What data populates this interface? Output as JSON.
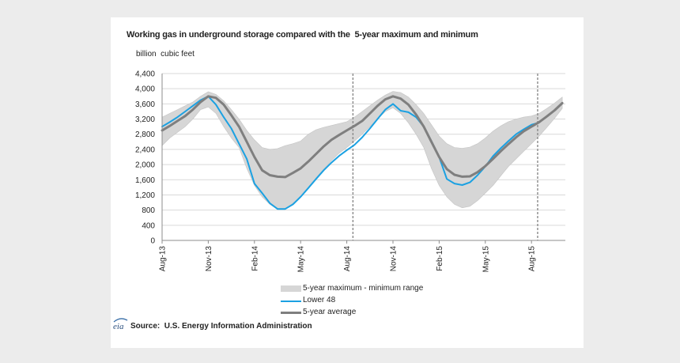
{
  "chart_data": {
    "type": "line",
    "title": "Working gas in underground storage compared with the  5-year maximum and minimum",
    "ylabel": "billion  cubic feet",
    "xlabel": "",
    "ylim": [
      0,
      4400
    ],
    "xlim": [
      0,
      26.2
    ],
    "grid": true,
    "legend_position": "bottom-center",
    "yticks": [
      {
        "value": 0,
        "label": "0"
      },
      {
        "value": 400,
        "label": "400"
      },
      {
        "value": 800,
        "label": "800"
      },
      {
        "value": 1200,
        "label": "1,200"
      },
      {
        "value": 1600,
        "label": "1,600"
      },
      {
        "value": 2000,
        "label": "2,000"
      },
      {
        "value": 2400,
        "label": "2,400"
      },
      {
        "value": 2800,
        "label": "2,800"
      },
      {
        "value": 3200,
        "label": "3,200"
      },
      {
        "value": 3600,
        "label": "3,600"
      },
      {
        "value": 4000,
        "label": "4,000"
      },
      {
        "value": 4400,
        "label": "4,400"
      }
    ],
    "xticks": [
      {
        "x": 0,
        "label": "Aug-13"
      },
      {
        "x": 3,
        "label": "Nov-13"
      },
      {
        "x": 6,
        "label": "Feb-14"
      },
      {
        "x": 9,
        "label": "May-14"
      },
      {
        "x": 12,
        "label": "Aug-14"
      },
      {
        "x": 15,
        "label": "Nov-14"
      },
      {
        "x": 18,
        "label": "Feb-15"
      },
      {
        "x": 21,
        "label": "May-15"
      },
      {
        "x": 24,
        "label": "Aug-15"
      }
    ],
    "markers": [
      12.4,
      24.4
    ],
    "x": [
      0,
      0.5,
      1,
      1.5,
      2,
      2.5,
      3,
      3.5,
      4,
      4.5,
      5,
      5.5,
      6,
      6.5,
      7,
      7.5,
      8,
      8.5,
      9,
      9.5,
      10,
      10.5,
      11,
      11.5,
      12,
      12.5,
      13,
      13.5,
      14,
      14.5,
      15,
      15.5,
      16,
      16.5,
      17,
      17.5,
      18,
      18.5,
      19,
      19.5,
      20,
      20.5,
      21,
      21.5,
      22,
      22.5,
      23,
      23.5,
      24,
      24.5,
      25,
      25.5,
      26
    ],
    "band": {
      "name": "5-year maximum - minimum range",
      "color": "#d6d6d6",
      "max": [
        3250,
        3350,
        3450,
        3550,
        3650,
        3800,
        3920,
        3850,
        3680,
        3450,
        3200,
        2900,
        2650,
        2450,
        2400,
        2420,
        2500,
        2550,
        2620,
        2800,
        2920,
        2980,
        3030,
        3080,
        3130,
        3250,
        3400,
        3550,
        3700,
        3830,
        3930,
        3900,
        3780,
        3580,
        3350,
        3050,
        2750,
        2550,
        2450,
        2430,
        2460,
        2550,
        2700,
        2880,
        3020,
        3130,
        3200,
        3250,
        3280,
        3350,
        3480,
        3620,
        3780
      ],
      "min": [
        2500,
        2700,
        2850,
        3000,
        3200,
        3450,
        3520,
        3350,
        3000,
        2700,
        2450,
        1900,
        1450,
        1150,
        950,
        820,
        820,
        980,
        1150,
        1400,
        1650,
        1880,
        2100,
        2300,
        2450,
        2620,
        2800,
        3000,
        3200,
        3400,
        3500,
        3350,
        3100,
        2800,
        2450,
        1900,
        1450,
        1150,
        950,
        860,
        900,
        1050,
        1250,
        1450,
        1700,
        1950,
        2150,
        2350,
        2550,
        2750,
        2980,
        3220,
        3480
      ]
    },
    "series": [
      {
        "name": "Lower 48",
        "color": "#1ba1e2",
        "values": [
          3000,
          3120,
          3250,
          3400,
          3550,
          3700,
          3800,
          3580,
          3250,
          2950,
          2550,
          2150,
          1500,
          1250,
          980,
          830,
          830,
          950,
          1150,
          1380,
          1620,
          1850,
          2050,
          2230,
          2380,
          2520,
          2720,
          2950,
          3200,
          3450,
          3600,
          3420,
          3380,
          3250,
          3000,
          2620,
          2200,
          1620,
          1500,
          1460,
          1530,
          1720,
          1950,
          2220,
          2430,
          2620,
          2800,
          2930,
          3050,
          3110,
          null,
          null,
          null
        ]
      },
      {
        "name": "5-year average",
        "color": "#7f7f7f",
        "values": [
          2900,
          3020,
          3150,
          3280,
          3450,
          3650,
          3800,
          3760,
          3580,
          3300,
          3000,
          2600,
          2200,
          1850,
          1720,
          1680,
          1670,
          1780,
          1900,
          2080,
          2280,
          2480,
          2650,
          2780,
          2900,
          3020,
          3150,
          3350,
          3550,
          3720,
          3800,
          3740,
          3580,
          3320,
          3000,
          2600,
          2200,
          1880,
          1730,
          1680,
          1690,
          1800,
          1960,
          2150,
          2350,
          2540,
          2720,
          2880,
          3000,
          3120,
          3270,
          3430,
          3620
        ]
      }
    ]
  },
  "source": {
    "label": "Source:  U.S. Energy Information Administration"
  },
  "logo_text": "eia"
}
